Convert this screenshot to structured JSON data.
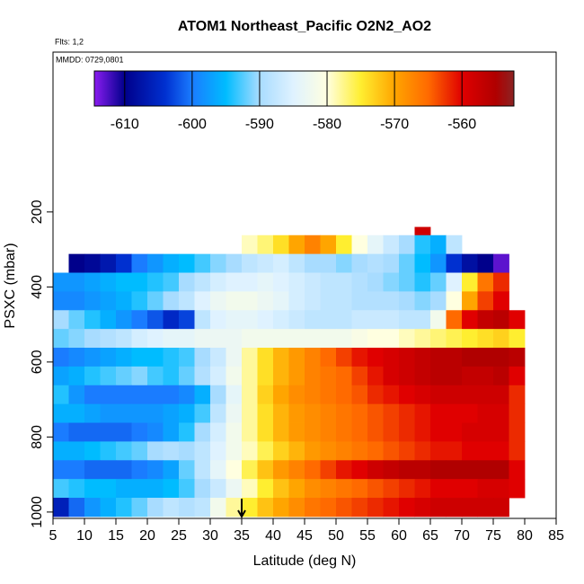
{
  "chart_data": {
    "type": "heatmap",
    "title": "ATOM1 Northeast_Pacific O2N2_AO2",
    "subtitle": "Flts: 1,2",
    "annotation": "MMDD: 0729,0801",
    "x_label": "Latitude (deg N)",
    "y_label": "PSXC (mbar)",
    "xlim": [
      5,
      85
    ],
    "xticks": [
      5,
      10,
      15,
      20,
      25,
      30,
      35,
      40,
      45,
      50,
      55,
      60,
      65,
      70,
      75,
      80,
      85
    ],
    "ylim": [
      1017,
      -226
    ],
    "yticks": [
      200,
      400,
      600,
      800,
      1000
    ],
    "clim": [
      -614.5,
      -552.3
    ],
    "cticks": [
      -610,
      -600,
      -590,
      -580,
      -570,
      -560
    ],
    "colorscale": [
      {
        "value": -614.5,
        "color": "#8a1cf0"
      },
      {
        "value": -610,
        "color": "#00008b"
      },
      {
        "value": -604,
        "color": "#0030d0"
      },
      {
        "value": -600,
        "color": "#1a7cff"
      },
      {
        "value": -595,
        "color": "#00bcff"
      },
      {
        "value": -590,
        "color": "#a8dcff"
      },
      {
        "value": -585,
        "color": "#dff2ff"
      },
      {
        "value": -580,
        "color": "#ffffe0"
      },
      {
        "value": -575,
        "color": "#ffee30"
      },
      {
        "value": -570,
        "color": "#ffa500"
      },
      {
        "value": -565,
        "color": "#ff6a00"
      },
      {
        "value": -560,
        "color": "#e00000"
      },
      {
        "value": -555,
        "color": "#b00000"
      },
      {
        "value": -552.3,
        "color": "#8b2323"
      }
    ],
    "x_edges": [
      5,
      7.5,
      10,
      12.5,
      15,
      17.5,
      20,
      22.5,
      25,
      27.5,
      30,
      32.5,
      35,
      37.5,
      40,
      42.5,
      45,
      47.5,
      50,
      52.5,
      55,
      57.5,
      60,
      62.5,
      65,
      67.5,
      70,
      72.5,
      75,
      77.5,
      80
    ],
    "y_edges": [
      240,
      262,
      312,
      362,
      412,
      462,
      512,
      562,
      612,
      662,
      712,
      762,
      812,
      862,
      912,
      962,
      1012
    ],
    "values": [
      [
        null,
        null,
        null,
        null,
        null,
        null,
        null,
        null,
        null,
        null,
        null,
        null,
        null,
        null,
        null,
        null,
        null,
        null,
        null,
        null,
        null,
        null,
        null,
        -558,
        null,
        null,
        null,
        null,
        null,
        null
      ],
      [
        null,
        null,
        null,
        null,
        null,
        null,
        null,
        null,
        null,
        null,
        null,
        null,
        -579,
        -577,
        -574,
        -570,
        -567,
        -570,
        -575,
        -580,
        -584,
        -587,
        -590,
        -594,
        -596,
        -588,
        null,
        null,
        null,
        null
      ],
      [
        null,
        -610,
        -609,
        -607,
        -604,
        -600,
        -598,
        -596,
        -595,
        -593,
        -591,
        -590,
        -588,
        -587,
        -586,
        -588,
        -590,
        -590,
        -591,
        -590,
        -589,
        -590,
        -592,
        -595,
        -598,
        -604,
        -608,
        -610,
        -613,
        null
      ],
      [
        -598,
        -598,
        -597,
        -596,
        -595,
        -595,
        -594,
        -593,
        -590,
        -588,
        -586,
        -585,
        -585,
        -584,
        -585,
        -586,
        -587,
        -588,
        -588,
        -589,
        -590,
        -591,
        -592,
        -594,
        -592,
        -585,
        -575,
        -566,
        -562,
        null
      ],
      [
        -599,
        -599,
        -598,
        -597,
        -596,
        -594,
        -592,
        -590,
        -588,
        -585,
        -583,
        -582,
        -582,
        -583,
        -584,
        -586,
        -587,
        -588,
        -588,
        -589,
        -589,
        -589,
        -590,
        -591,
        -590,
        -580,
        -570,
        -563,
        -560,
        null
      ],
      [
        -590,
        -592,
        -594,
        -596,
        -598,
        -600,
        -602,
        -605,
        -603,
        -588,
        -585,
        -584,
        -584,
        -585,
        -586,
        -587,
        -588,
        -588,
        -588,
        -587,
        -587,
        -587,
        -588,
        -588,
        -582,
        -565,
        -560,
        -557,
        -556,
        -560
      ],
      [
        -592,
        -591,
        -590,
        -589,
        -588,
        -586,
        -585,
        -584,
        -584,
        -583,
        -583,
        -583,
        -582,
        -582,
        -582,
        -582,
        -582,
        -582,
        -582,
        -581,
        -580,
        -580,
        -579,
        -578,
        -577,
        -576,
        -575,
        -574,
        -573,
        -575
      ],
      [
        -600,
        -599,
        -598,
        -597,
        -596,
        -595,
        -595,
        -594,
        -593,
        -590,
        -587,
        -583,
        -578,
        -574,
        -571,
        -569,
        -567,
        -565,
        -563,
        -561,
        -560,
        -559,
        -558,
        -557,
        -556,
        -556,
        -555,
        -555,
        -555,
        -556
      ],
      [
        -597,
        -596,
        -594,
        -593,
        -592,
        -591,
        -593,
        -594,
        -592,
        -589,
        -586,
        -582,
        -578,
        -574,
        -571,
        -569,
        -567,
        -566,
        -565,
        -563,
        -561,
        -559,
        -558,
        -557,
        -556,
        -556,
        -557,
        -557,
        -556,
        -560
      ],
      [
        -594,
        -598,
        -600,
        -600,
        -600,
        -600,
        -600,
        -600,
        -599,
        -596,
        -590,
        -584,
        -578,
        -573,
        -570,
        -568,
        -567,
        -566,
        -565,
        -564,
        -562,
        -561,
        -560,
        -559,
        -558,
        -558,
        -558,
        -558,
        -558,
        -562
      ],
      [
        -596,
        -596,
        -597,
        -598,
        -598,
        -598,
        -598,
        -597,
        -596,
        -593,
        -588,
        -583,
        -578,
        -574,
        -571,
        -569,
        -568,
        -567,
        -566,
        -565,
        -564,
        -563,
        -562,
        -561,
        -560,
        -560,
        -560,
        -559,
        -559,
        -562
      ],
      [
        -600,
        -601,
        -601,
        -601,
        -601,
        -600,
        -599,
        -597,
        -594,
        -590,
        -586,
        -582,
        -578,
        -574,
        -571,
        -569,
        -568,
        -567,
        -566,
        -565,
        -564,
        -563,
        -562,
        -561,
        -560,
        -560,
        -559,
        -559,
        -559,
        -562
      ],
      [
        -596,
        -596,
        -595,
        -594,
        -593,
        -592,
        -590,
        -589,
        -590,
        -588,
        -585,
        -582,
        -579,
        -576,
        -573,
        -571,
        -569,
        -568,
        -567,
        -566,
        -565,
        -564,
        -563,
        -562,
        -561,
        -561,
        -560,
        -560,
        -560,
        -562
      ],
      [
        -600,
        -600,
        -601,
        -601,
        -601,
        -600,
        -599,
        -597,
        -592,
        -588,
        -584,
        -580,
        -576,
        -572,
        -569,
        -567,
        -565,
        -563,
        -561,
        -560,
        -558,
        -557,
        -556,
        -556,
        -555,
        -555,
        -555,
        -555,
        -555,
        -560
      ],
      [
        -593,
        -594,
        -595,
        -595,
        -596,
        -596,
        -596,
        -595,
        -593,
        -590,
        -587,
        -583,
        -579,
        -575,
        -572,
        -570,
        -568,
        -567,
        -566,
        -565,
        -564,
        -563,
        -562,
        -561,
        -560,
        -560,
        -560,
        -559,
        -559,
        -560
      ],
      [
        -606,
        -601,
        -598,
        -596,
        -594,
        -592,
        -590,
        -588,
        -589,
        -588,
        -582,
        -578,
        -575,
        -572,
        -570,
        -568,
        -566,
        -565,
        -564,
        -563,
        -562,
        -561,
        -560,
        -559,
        -558,
        -558,
        -558,
        -558,
        -558,
        null
      ]
    ],
    "arrow_x": 35
  }
}
